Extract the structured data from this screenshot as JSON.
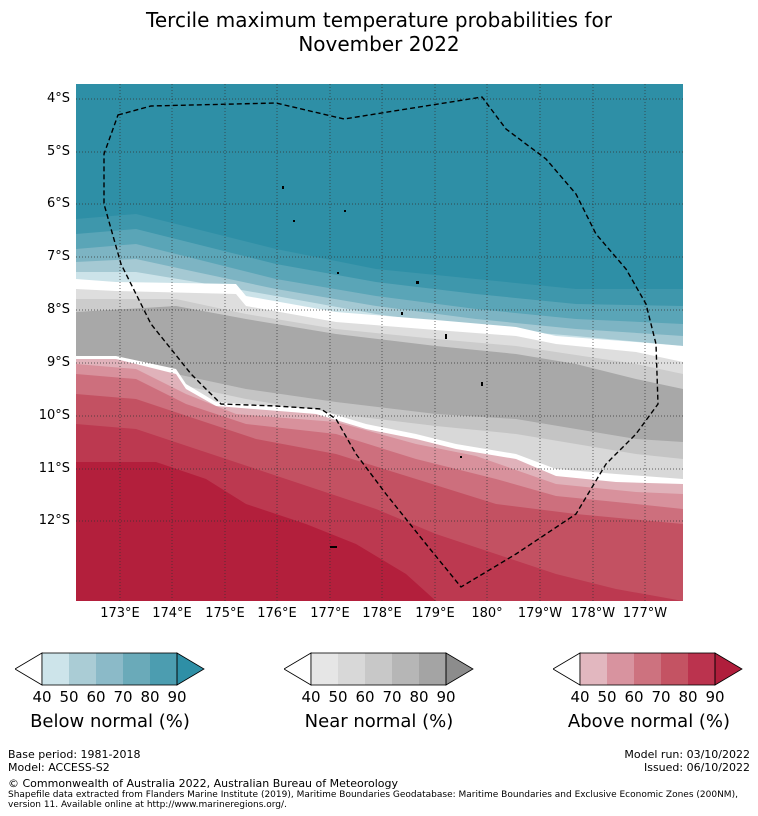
{
  "title_line1": "Tercile maximum temperature probabilities for",
  "title_line2": "November 2022",
  "lat_labels": [
    "4°S",
    "5°S",
    "6°S",
    "7°S",
    "8°S",
    "9°S",
    "10°S",
    "11°S",
    "12°S"
  ],
  "lon_labels": [
    "173°E",
    "174°E",
    "175°E",
    "176°E",
    "177°E",
    "178°E",
    "179°E",
    "180°",
    "179°W",
    "178°W",
    "177°W"
  ],
  "colorbars": [
    {
      "label": "Below normal (%)",
      "ticks": [
        "40",
        "50",
        "60",
        "70",
        "80",
        "90"
      ],
      "colors": [
        "#ffffff",
        "#cde4ea",
        "#aaccd5",
        "#8bbac8",
        "#6aaab9",
        "#4c9db0",
        "#2e8fa6"
      ]
    },
    {
      "label": "Near normal (%)",
      "ticks": [
        "40",
        "50",
        "60",
        "70",
        "80",
        "90"
      ],
      "colors": [
        "#ffffff",
        "#e6e6e6",
        "#d8d8d8",
        "#c8c8c8",
        "#b6b6b6",
        "#a4a4a4",
        "#8c8c8c"
      ]
    },
    {
      "label": "Above normal (%)",
      "ticks": [
        "40",
        "50",
        "60",
        "70",
        "80",
        "90"
      ],
      "colors": [
        "#ffffff",
        "#e2b7bf",
        "#d8939f",
        "#cd727f",
        "#c45363",
        "#bb334e",
        "#b01e3c"
      ]
    }
  ],
  "footer": {
    "base_period": "Base period: 1981-2018",
    "model": "Model: ACCESS-S2",
    "model_run": "Model run: 03/10/2022",
    "issued": "Issued: 06/10/2022",
    "copyright": "© Commonwealth of Australia 2022, Australian Bureau of Meteorology",
    "shapefile_line1": "Shapefile data extracted from Flanders Marine Institute (2019), Maritime Boundaries Geodatabase: Maritime Boundaries and Exclusive Economic Zones (200NM),",
    "shapefile_line2": "version 11. Available online at http://www.marineregions.org/."
  }
}
